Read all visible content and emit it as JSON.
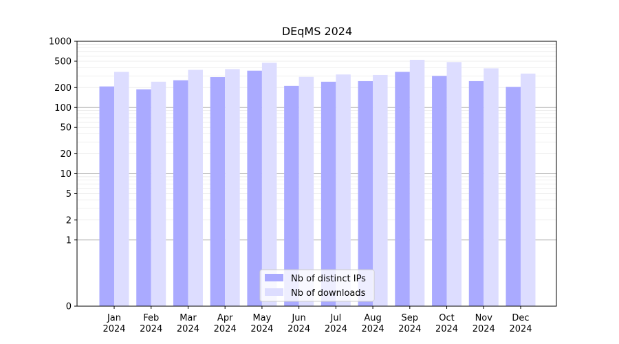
{
  "chart_data": {
    "type": "bar",
    "title": "DEqMS 2024",
    "xlabel": "",
    "ylabel": "",
    "y_scale": "symlog",
    "ylim": [
      0,
      1000
    ],
    "y_ticks": [
      0,
      1,
      2,
      5,
      10,
      20,
      50,
      100,
      200,
      500,
      1000
    ],
    "grid": "horizontal",
    "legend_position": "bottom-center",
    "categories": [
      [
        "Jan",
        "2024"
      ],
      [
        "Feb",
        "2024"
      ],
      [
        "Mar",
        "2024"
      ],
      [
        "Apr",
        "2024"
      ],
      [
        "May",
        "2024"
      ],
      [
        "Jun",
        "2024"
      ],
      [
        "Jul",
        "2024"
      ],
      [
        "Aug",
        "2024"
      ],
      [
        "Sep",
        "2024"
      ],
      [
        "Oct",
        "2024"
      ],
      [
        "Nov",
        "2024"
      ],
      [
        "Dec",
        "2024"
      ]
    ],
    "series": [
      {
        "name": "Nb of distinct IPs",
        "color": "#aaaaff",
        "values": [
          208,
          188,
          258,
          288,
          360,
          212,
          245,
          250,
          345,
          300,
          250,
          205
        ]
      },
      {
        "name": "Nb of downloads",
        "color": "#ddddff",
        "values": [
          345,
          245,
          370,
          380,
          475,
          290,
          315,
          310,
          525,
          485,
          390,
          325
        ]
      }
    ]
  }
}
